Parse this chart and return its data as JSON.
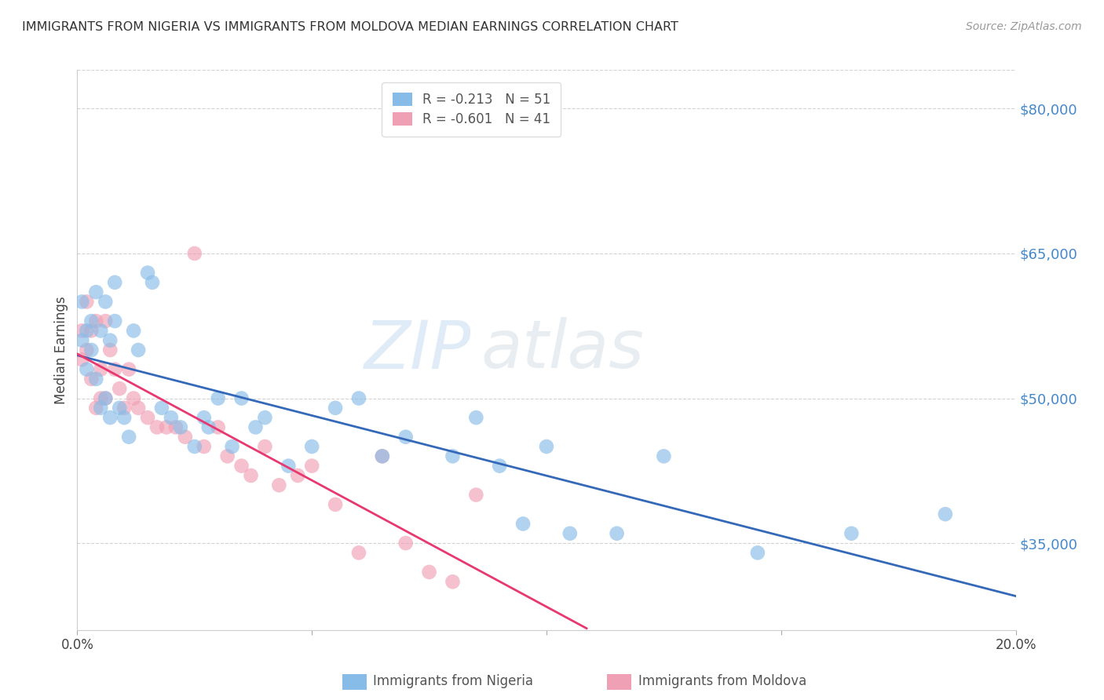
{
  "title": "IMMIGRANTS FROM NIGERIA VS IMMIGRANTS FROM MOLDOVA MEDIAN EARNINGS CORRELATION CHART",
  "source": "Source: ZipAtlas.com",
  "ylabel": "Median Earnings",
  "xlim": [
    0.0,
    0.2
  ],
  "ylim": [
    26000,
    84000
  ],
  "yticks": [
    35000,
    50000,
    65000,
    80000
  ],
  "ytick_labels": [
    "$35,000",
    "$50,000",
    "$65,000",
    "$80,000"
  ],
  "xticks": [
    0.0,
    0.05,
    0.1,
    0.15,
    0.2
  ],
  "xtick_labels": [
    "0.0%",
    "",
    "",
    "",
    "20.0%"
  ],
  "background_color": "#ffffff",
  "grid_color": "#c8c8c8",
  "watermark_zip": "ZIP",
  "watermark_atlas": "atlas",
  "watermark_color_zip": "#b8d4f0",
  "watermark_color_atlas": "#c8d8e8",
  "nigeria_color": "#88bce8",
  "moldova_color": "#f0a0b4",
  "nigeria_line_color": "#3468b8",
  "moldova_line_color": "#e83870",
  "nigeria_R": -0.213,
  "nigeria_N": 51,
  "moldova_R": -0.601,
  "moldova_N": 41,
  "nigeria_label": "Immigrants from Nigeria",
  "moldova_label": "Immigrants from Moldova",
  "nigeria_scatter_x": [
    0.001,
    0.001,
    0.002,
    0.002,
    0.003,
    0.003,
    0.004,
    0.004,
    0.005,
    0.005,
    0.006,
    0.006,
    0.007,
    0.007,
    0.008,
    0.008,
    0.009,
    0.01,
    0.011,
    0.012,
    0.013,
    0.015,
    0.016,
    0.018,
    0.02,
    0.022,
    0.025,
    0.027,
    0.028,
    0.03,
    0.033,
    0.035,
    0.038,
    0.04,
    0.045,
    0.05,
    0.055,
    0.06,
    0.065,
    0.07,
    0.08,
    0.085,
    0.09,
    0.095,
    0.1,
    0.105,
    0.115,
    0.125,
    0.145,
    0.165,
    0.185
  ],
  "nigeria_scatter_y": [
    60000,
    56000,
    57000,
    53000,
    58000,
    55000,
    61000,
    52000,
    57000,
    49000,
    60000,
    50000,
    56000,
    48000,
    62000,
    58000,
    49000,
    48000,
    46000,
    57000,
    55000,
    63000,
    62000,
    49000,
    48000,
    47000,
    45000,
    48000,
    47000,
    50000,
    45000,
    50000,
    47000,
    48000,
    43000,
    45000,
    49000,
    50000,
    44000,
    46000,
    44000,
    48000,
    43000,
    37000,
    45000,
    36000,
    36000,
    44000,
    34000,
    36000,
    38000
  ],
  "moldova_scatter_x": [
    0.001,
    0.001,
    0.002,
    0.002,
    0.003,
    0.003,
    0.004,
    0.004,
    0.005,
    0.005,
    0.006,
    0.006,
    0.007,
    0.008,
    0.009,
    0.01,
    0.011,
    0.012,
    0.013,
    0.015,
    0.017,
    0.019,
    0.021,
    0.023,
    0.025,
    0.027,
    0.03,
    0.032,
    0.035,
    0.037,
    0.04,
    0.043,
    0.047,
    0.05,
    0.055,
    0.06,
    0.065,
    0.07,
    0.075,
    0.08,
    0.085
  ],
  "moldova_scatter_y": [
    57000,
    54000,
    60000,
    55000,
    57000,
    52000,
    58000,
    49000,
    53000,
    50000,
    58000,
    50000,
    55000,
    53000,
    51000,
    49000,
    53000,
    50000,
    49000,
    48000,
    47000,
    47000,
    47000,
    46000,
    65000,
    45000,
    47000,
    44000,
    43000,
    42000,
    45000,
    41000,
    42000,
    43000,
    39000,
    34000,
    44000,
    35000,
    32000,
    31000,
    40000
  ]
}
